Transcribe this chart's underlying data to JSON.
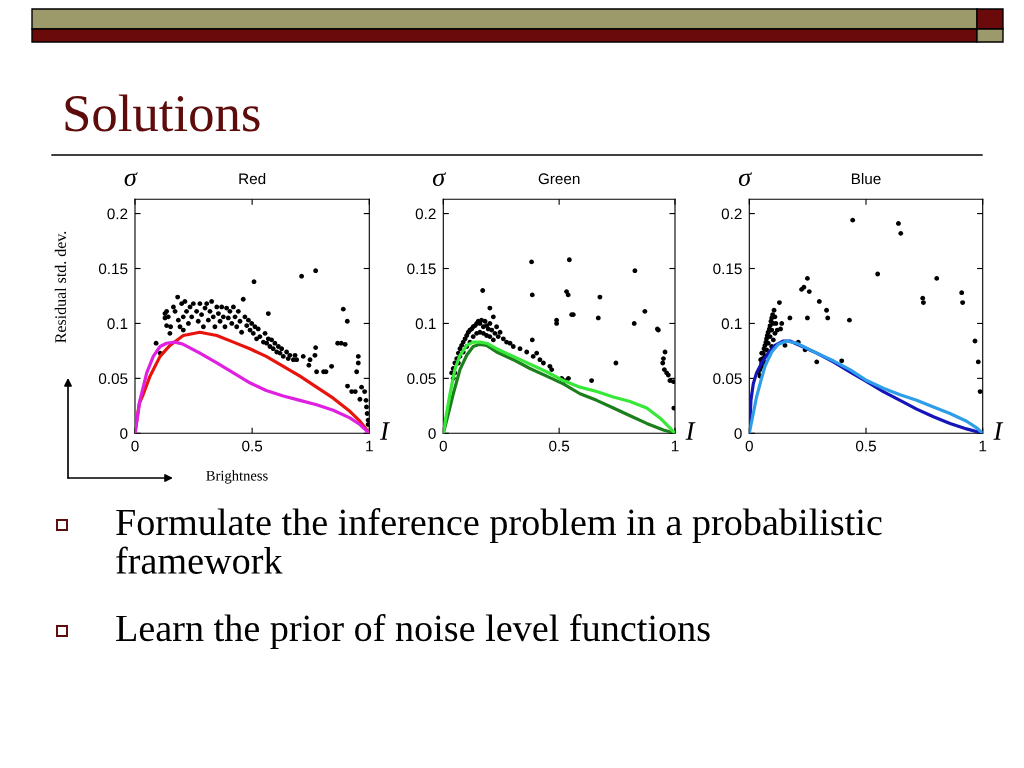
{
  "chart_data": [
    {
      "type": "other",
      "title": "Solutions"
    },
    {
      "type": "scatter",
      "title": "Red",
      "xlabel": "I",
      "ylabel": "σ",
      "xlim": [
        0,
        1
      ],
      "ylim": [
        0,
        0.213
      ],
      "xticks": [
        0,
        0.5,
        1
      ],
      "yticks": [
        0,
        0.05,
        0.1,
        0.15,
        0.2
      ],
      "annotations": [
        "Residual std. dev.",
        "Brightness"
      ],
      "series": [
        {
          "color": "#000000",
          "marker": "circle",
          "x": [
            0.09,
            0.107,
            0.128,
            0.128,
            0.135,
            0.142,
            0.135,
            0.149,
            0.152,
            0.164,
            0.171,
            0.182,
            0.185,
            0.192,
            0.199,
            0.206,
            0.206,
            0.213,
            0.22,
            0.228,
            0.235,
            0.242,
            0.249,
            0.263,
            0.27,
            0.277,
            0.284,
            0.292,
            0.299,
            0.306,
            0.313,
            0.32,
            0.327,
            0.334,
            0.341,
            0.349,
            0.356,
            0.363,
            0.37,
            0.377,
            0.384,
            0.391,
            0.398,
            0.405,
            0.413,
            0.42,
            0.427,
            0.434,
            0.441,
            0.448,
            0.455,
            0.462,
            0.469,
            0.477,
            0.484,
            0.491,
            0.498,
            0.505,
            0.512,
            0.519,
            0.526,
            0.533,
            0.569,
            0.548,
            0.555,
            0.562,
            0.569,
            0.576,
            0.583,
            0.59,
            0.597,
            0.605,
            0.612,
            0.619,
            0.626,
            0.633,
            0.647,
            0.654,
            0.661,
            0.676,
            0.683,
            0.508,
            0.711,
            0.771,
            0.889,
            0.906,
            0.865,
            0.88,
            0.897,
            0.907,
            0.925,
            0.94,
            0.953,
            0.953,
            0.946,
            0.96,
            0.967,
            0.98,
            0.986,
            0.988,
            0.991,
            0.995,
            0.995,
            0.839,
            0.805,
            0.815,
            0.775,
            0.768,
            0.771,
            0.747,
            0.742,
            0.718,
            0.69
          ],
          "values": [
            0.082,
            0.073,
            0.109,
            0.105,
            0.111,
            0.106,
            0.098,
            0.091,
            0.097,
            0.115,
            0.111,
            0.124,
            0.103,
            0.097,
            0.118,
            0.106,
            0.094,
            0.12,
            0.111,
            0.1,
            0.115,
            0.106,
            0.118,
            0.111,
            0.102,
            0.118,
            0.108,
            0.097,
            0.114,
            0.118,
            0.103,
            0.111,
            0.12,
            0.106,
            0.097,
            0.115,
            0.109,
            0.102,
            0.115,
            0.106,
            0.097,
            0.114,
            0.105,
            0.111,
            0.1,
            0.115,
            0.106,
            0.097,
            0.111,
            0.102,
            0.092,
            0.122,
            0.106,
            0.098,
            0.103,
            0.094,
            0.1,
            0.091,
            0.097,
            0.086,
            0.095,
            0.088,
            0.109,
            0.083,
            0.091,
            0.082,
            0.086,
            0.079,
            0.085,
            0.077,
            0.082,
            0.074,
            0.079,
            0.073,
            0.077,
            0.07,
            0.074,
            0.068,
            0.071,
            0.067,
            0.071,
            0.138,
            0.143,
            0.148,
            0.113,
            0.102,
            0.082,
            0.082,
            0.081,
            0.043,
            0.038,
            0.038,
            0.07,
            0.064,
            0.056,
            0.031,
            0.042,
            0.038,
            0.03,
            0.024,
            0.018,
            0.012,
            0.008,
            0.061,
            0.056,
            0.056,
            0.056,
            0.071,
            0.078,
            0.067,
            0.062,
            0.07,
            0.067
          ]
        },
        {
          "type": "line",
          "color": "#e8140c",
          "x": [
            0,
            0.018,
            0.036,
            0.064,
            0.107,
            0.149,
            0.206,
            0.277,
            0.349,
            0.42,
            0.49,
            0.56,
            0.633,
            0.704,
            0.775,
            0.846,
            0.917,
            0.96,
            1
          ],
          "values": [
            0,
            0.027,
            0.036,
            0.052,
            0.07,
            0.08,
            0.089,
            0.092,
            0.089,
            0.083,
            0.077,
            0.07,
            0.061,
            0.052,
            0.042,
            0.032,
            0.02,
            0.011,
            0
          ]
        },
        {
          "type": "line",
          "color": "#e020e0",
          "x": [
            0,
            0.021,
            0.05,
            0.078,
            0.107,
            0.135,
            0.171,
            0.206,
            0.277,
            0.349,
            0.42,
            0.49,
            0.56,
            0.633,
            0.704,
            0.775,
            0.846,
            0.917,
            0.96,
            1
          ],
          "values": [
            0,
            0.03,
            0.055,
            0.07,
            0.079,
            0.082,
            0.083,
            0.081,
            0.073,
            0.064,
            0.055,
            0.046,
            0.039,
            0.034,
            0.03,
            0.026,
            0.021,
            0.014,
            0.008,
            0
          ]
        }
      ]
    },
    {
      "type": "scatter",
      "title": "Green",
      "xlabel": "I",
      "ylabel": "σ",
      "xlim": [
        0,
        1
      ],
      "ylim": [
        0,
        0.213
      ],
      "xticks": [
        0,
        0.5,
        1
      ],
      "yticks": [
        0,
        0.05,
        0.1,
        0.15,
        0.2
      ],
      "series": [
        {
          "color": "#000000",
          "marker": "circle",
          "x": [
            0.036,
            0.043,
            0.05,
            0.058,
            0.065,
            0.072,
            0.079,
            0.086,
            0.094,
            0.101,
            0.108,
            0.115,
            0.122,
            0.129,
            0.137,
            0.144,
            0.151,
            0.158,
            0.165,
            0.173,
            0.18,
            0.187,
            0.194,
            0.201,
            0.209,
            0.216,
            0.223,
            0.23,
            0.237,
            0.245,
            0.259,
            0.273,
            0.288,
            0.072,
            0.086,
            0.101,
            0.115,
            0.129,
            0.144,
            0.158,
            0.173,
            0.187,
            0.201,
            0.216,
            0.043,
            0.05,
            0.065,
            0.302,
            0.331,
            0.36,
            0.388,
            0.417,
            0.432,
            0.46,
            0.468,
            0.17,
            0.201,
            0.381,
            0.384,
            0.384,
            0.403,
            0.489,
            0.489,
            0.544,
            0.532,
            0.539,
            0.554,
            0.561,
            0.676,
            0.669,
            0.64,
            0.525,
            0.54,
            0.511,
            0.745,
            0.827,
            0.824,
            0.87,
            0.924,
            0.928,
            0.957,
            0.95,
            0.947,
            0.954,
            0.964,
            0.971,
            0.978,
            0.993,
            0.995
          ],
          "values": [
            0.055,
            0.059,
            0.064,
            0.068,
            0.073,
            0.077,
            0.08,
            0.083,
            0.086,
            0.089,
            0.092,
            0.094,
            0.095,
            0.097,
            0.098,
            0.1,
            0.102,
            0.1,
            0.103,
            0.097,
            0.102,
            0.098,
            0.095,
            0.1,
            0.094,
            0.106,
            0.091,
            0.097,
            0.088,
            0.092,
            0.086,
            0.083,
            0.082,
            0.07,
            0.074,
            0.079,
            0.083,
            0.088,
            0.091,
            0.092,
            0.091,
            0.089,
            0.088,
            0.085,
            0.05,
            0.055,
            0.064,
            0.079,
            0.077,
            0.074,
            0.07,
            0.067,
            0.064,
            0.061,
            0.058,
            0.13,
            0.114,
            0.156,
            0.126,
            0.085,
            0.073,
            0.103,
            0.1,
            0.158,
            0.129,
            0.126,
            0.108,
            0.108,
            0.124,
            0.105,
            0.048,
            0.048,
            0.05,
            0.05,
            0.064,
            0.148,
            0.1,
            0.111,
            0.095,
            0.094,
            0.074,
            0.068,
            0.064,
            0.058,
            0.055,
            0.053,
            0.048,
            0.047,
            0.023
          ]
        },
        {
          "type": "line",
          "color": "#1b7f1b",
          "x": [
            0,
            0.022,
            0.043,
            0.072,
            0.101,
            0.129,
            0.158,
            0.187,
            0.23,
            0.302,
            0.374,
            0.446,
            0.518,
            0.59,
            0.662,
            0.734,
            0.806,
            0.878,
            0.95,
            1
          ],
          "values": [
            0,
            0.018,
            0.036,
            0.058,
            0.071,
            0.079,
            0.081,
            0.08,
            0.074,
            0.067,
            0.059,
            0.052,
            0.045,
            0.036,
            0.03,
            0.023,
            0.016,
            0.009,
            0.003,
            0
          ]
        },
        {
          "type": "line",
          "color": "#38e838",
          "x": [
            0,
            0.014,
            0.029,
            0.05,
            0.072,
            0.101,
            0.129,
            0.158,
            0.187,
            0.23,
            0.302,
            0.374,
            0.446,
            0.518,
            0.59,
            0.662,
            0.734,
            0.806,
            0.878,
            0.935,
            0.978,
            1
          ],
          "values": [
            0,
            0.018,
            0.036,
            0.058,
            0.071,
            0.08,
            0.083,
            0.083,
            0.082,
            0.077,
            0.07,
            0.063,
            0.056,
            0.048,
            0.042,
            0.038,
            0.033,
            0.029,
            0.023,
            0.014,
            0.005,
            0
          ]
        }
      ]
    },
    {
      "type": "scatter",
      "title": "Blue",
      "xlabel": "I",
      "ylabel": "σ",
      "xlim": [
        0,
        1
      ],
      "ylim": [
        0,
        0.213
      ],
      "xticks": [
        0,
        0.5,
        1
      ],
      "yticks": [
        0,
        0.05,
        0.1,
        0.15,
        0.2
      ],
      "series": [
        {
          "color": "#000000",
          "marker": "circle",
          "x": [
            0.039,
            0.046,
            0.053,
            0.057,
            0.06,
            0.063,
            0.067,
            0.071,
            0.074,
            0.077,
            0.081,
            0.086,
            0.089,
            0.093,
            0.096,
            0.1,
            0.106,
            0.11,
            0.103,
            0.096,
            0.089,
            0.081,
            0.074,
            0.067,
            0.053,
            0.049,
            0.114,
            0.12,
            0.11,
            0.103,
            0.096,
            0.063,
            0.057,
            0.046,
            0.443,
            0.639,
            0.649,
            0.55,
            0.249,
            0.224,
            0.234,
            0.257,
            0.3,
            0.331,
            0.336,
            0.249,
            0.429,
            0.129,
            0.139,
            0.134,
            0.174,
            0.153,
            0.239,
            0.289,
            0.396,
            0.743,
            0.746,
            0.803,
            0.91,
            0.914,
            0.967,
            0.981,
            0.989,
            0.21
          ],
          "values": [
            0.055,
            0.058,
            0.064,
            0.068,
            0.073,
            0.077,
            0.08,
            0.083,
            0.086,
            0.089,
            0.092,
            0.095,
            0.098,
            0.102,
            0.105,
            0.108,
            0.112,
            0.106,
            0.1,
            0.094,
            0.088,
            0.082,
            0.076,
            0.07,
            0.073,
            0.067,
            0.1,
            0.094,
            0.091,
            0.085,
            0.079,
            0.065,
            0.061,
            0.052,
            0.194,
            0.191,
            0.182,
            0.145,
            0.141,
            0.131,
            0.133,
            0.129,
            0.12,
            0.112,
            0.105,
            0.105,
            0.103,
            0.119,
            0.1,
            0.095,
            0.105,
            0.08,
            0.076,
            0.065,
            0.066,
            0.123,
            0.119,
            0.141,
            0.128,
            0.119,
            0.084,
            0.065,
            0.038,
            0.083
          ]
        },
        {
          "type": "line",
          "color": "#1414b8",
          "x": [
            0,
            0.007,
            0.017,
            0.031,
            0.053,
            0.081,
            0.11,
            0.146,
            0.174,
            0.217,
            0.289,
            0.36,
            0.431,
            0.503,
            0.574,
            0.646,
            0.717,
            0.789,
            0.86,
            0.931,
            1
          ],
          "values": [
            0,
            0.03,
            0.045,
            0.055,
            0.064,
            0.073,
            0.08,
            0.084,
            0.084,
            0.08,
            0.073,
            0.065,
            0.056,
            0.047,
            0.038,
            0.03,
            0.022,
            0.015,
            0.009,
            0.004,
            0
          ]
        },
        {
          "type": "line",
          "color": "#2e9ee8",
          "x": [
            0,
            0.017,
            0.031,
            0.046,
            0.067,
            0.096,
            0.124,
            0.16,
            0.203,
            0.289,
            0.36,
            0.431,
            0.503,
            0.574,
            0.646,
            0.717,
            0.789,
            0.86,
            0.931,
            0.974,
            1
          ],
          "values": [
            0,
            0.018,
            0.033,
            0.045,
            0.061,
            0.074,
            0.081,
            0.084,
            0.082,
            0.073,
            0.066,
            0.058,
            0.048,
            0.041,
            0.035,
            0.03,
            0.024,
            0.018,
            0.011,
            0.005,
            0
          ]
        }
      ]
    },
    {
      "type": "other",
      "annotations": [
        "Formulate the inference problem in a probabilistic framework",
        "Learn the prior of noise level functions"
      ]
    }
  ]
}
